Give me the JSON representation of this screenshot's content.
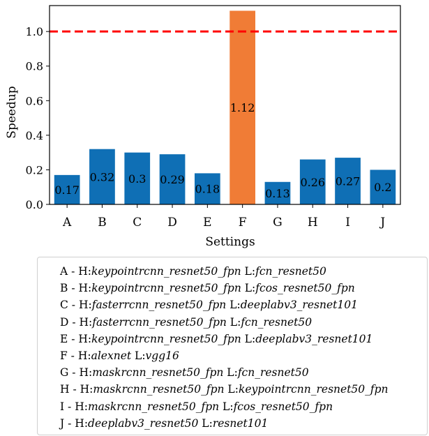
{
  "chart_data": {
    "type": "bar",
    "categories": [
      "A",
      "B",
      "C",
      "D",
      "E",
      "F",
      "G",
      "H",
      "I",
      "J"
    ],
    "values": [
      0.17,
      0.32,
      0.3,
      0.29,
      0.18,
      1.12,
      0.13,
      0.26,
      0.27,
      0.2
    ],
    "value_labels": [
      "0.17",
      "0.32",
      "0.3",
      "0.29",
      "0.18",
      "1.12",
      "0.13",
      "0.26",
      "0.27",
      "0.2"
    ],
    "ylabel": "Speedup",
    "xlabel": "Settings",
    "ylim": [
      0.0,
      1.15
    ],
    "yticks": [
      0.0,
      0.2,
      0.4,
      0.6,
      0.8,
      1.0
    ],
    "ytick_labels": [
      "0.0",
      "0.2",
      "0.4",
      "0.6",
      "0.8",
      "1.0"
    ],
    "reference_line": {
      "y": 1.0,
      "style": "dashed",
      "color": "#ff0000"
    },
    "colors": {
      "default_bar": "#0f6fb5",
      "highlight_bar": "#f07c36",
      "highlight_category": "F"
    },
    "grid": false,
    "legend_placement": "below"
  },
  "legend": {
    "entries": [
      {
        "prefix": "A - H:",
        "h": "keypointrcnn_resnet50_fpn",
        "mid": " L:",
        "l": "fcn_resnet50"
      },
      {
        "prefix": "B - H:",
        "h": "keypointrcnn_resnet50_fpn",
        "mid": " L:",
        "l": "fcos_resnet50_fpn"
      },
      {
        "prefix": "C - H:",
        "h": "fasterrcnn_resnet50_fpn",
        "mid": " L:",
        "l": "deeplabv3_resnet101"
      },
      {
        "prefix": "D - H:",
        "h": "fasterrcnn_resnet50_fpn",
        "mid": " L:",
        "l": "fcn_resnet50"
      },
      {
        "prefix": "E - H:",
        "h": "keypointrcnn_resnet50_fpn",
        "mid": " L:",
        "l": "deeplabv3_resnet101"
      },
      {
        "prefix": "F - H:",
        "h": "alexnet",
        "mid": " L:",
        "l": "vgg16"
      },
      {
        "prefix": "G - H:",
        "h": "maskrcnn_resnet50_fpn",
        "mid": " L:",
        "l": "fcn_resnet50"
      },
      {
        "prefix": "H - H:",
        "h": "maskrcnn_resnet50_fpn",
        "mid": " L:",
        "l": "keypointrcnn_resnet50_fpn"
      },
      {
        "prefix": "I - H:",
        "h": "maskrcnn_resnet50_fpn",
        "mid": " L:",
        "l": "fcos_resnet50_fpn"
      },
      {
        "prefix": "J - H:",
        "h": "deeplabv3_resnet50",
        "mid": " L:",
        "l": "resnet101"
      }
    ]
  }
}
